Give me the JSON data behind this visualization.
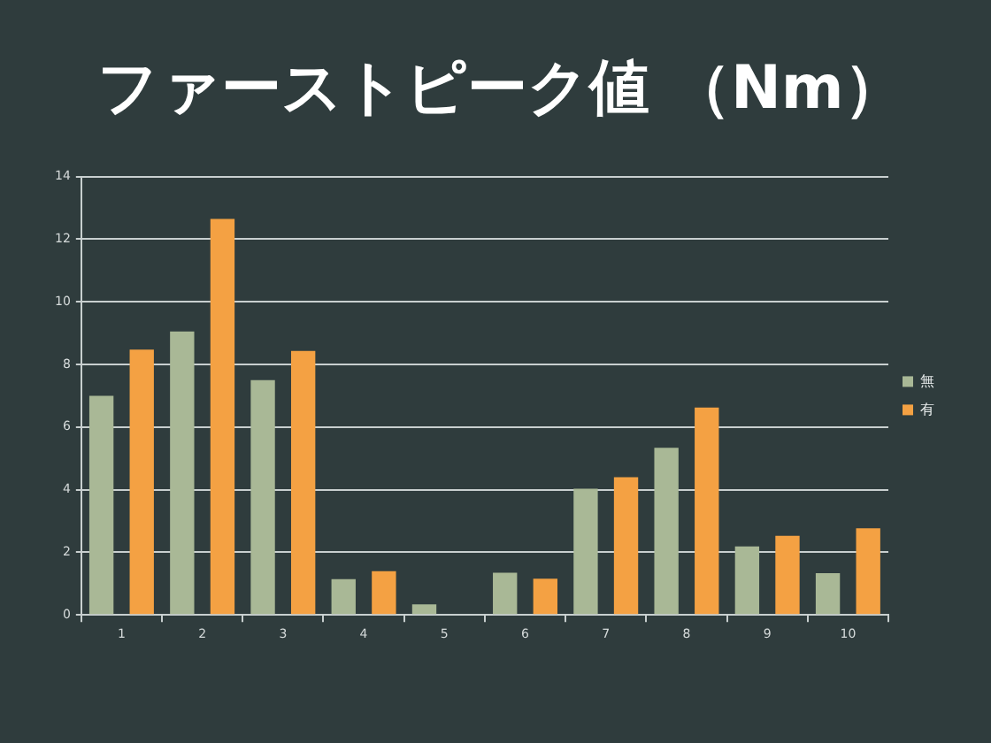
{
  "chart_data": {
    "type": "bar",
    "title": "ファーストピーク値 （Nm）",
    "categories": [
      "1",
      "2",
      "3",
      "4",
      "5",
      "6",
      "7",
      "8",
      "9",
      "10"
    ],
    "series": [
      {
        "name": "無",
        "color": "#a9b896",
        "values": [
          7.0,
          9.05,
          7.5,
          1.14,
          0.34,
          1.35,
          4.03,
          5.34,
          2.19,
          1.33
        ]
      },
      {
        "name": "有",
        "color": "#f4a143",
        "values": [
          8.47,
          12.65,
          8.43,
          1.4,
          null,
          1.16,
          4.4,
          6.62,
          2.53,
          2.77
        ]
      }
    ],
    "ylim": [
      0,
      14
    ],
    "yticks": [
      0,
      2,
      4,
      6,
      8,
      10,
      12,
      14
    ],
    "grid": "y",
    "legend": "right"
  }
}
